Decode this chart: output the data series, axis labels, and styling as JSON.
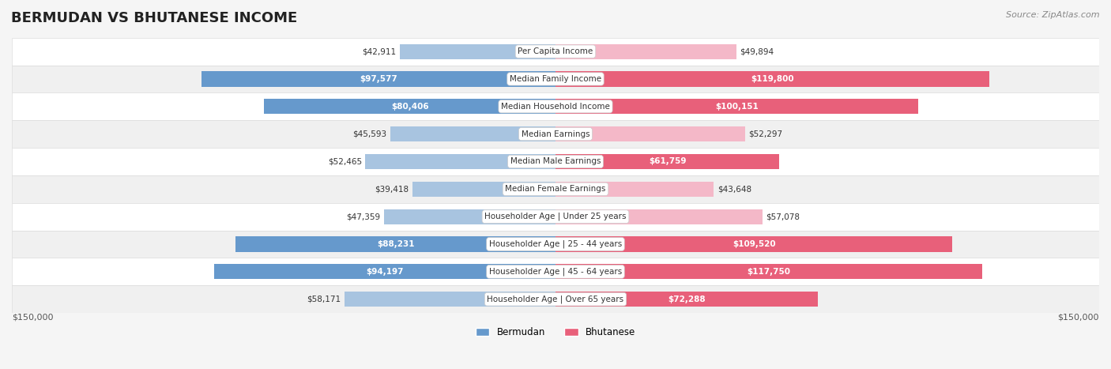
{
  "title": "BERMUDAN VS BHUTANESE INCOME",
  "source": "Source: ZipAtlas.com",
  "categories": [
    "Per Capita Income",
    "Median Family Income",
    "Median Household Income",
    "Median Earnings",
    "Median Male Earnings",
    "Median Female Earnings",
    "Householder Age | Under 25 years",
    "Householder Age | 25 - 44 years",
    "Householder Age | 45 - 64 years",
    "Householder Age | Over 65 years"
  ],
  "bermudan_values": [
    42911,
    97577,
    80406,
    45593,
    52465,
    39418,
    47359,
    88231,
    94197,
    58171
  ],
  "bhutanese_values": [
    49894,
    119800,
    100151,
    52297,
    61759,
    43648,
    57078,
    109520,
    117750,
    72288
  ],
  "bermudan_labels": [
    "$42,911",
    "$97,577",
    "$80,406",
    "$45,593",
    "$52,465",
    "$39,418",
    "$47,359",
    "$88,231",
    "$94,197",
    "$58,171"
  ],
  "bhutanese_labels": [
    "$49,894",
    "$119,800",
    "$100,151",
    "$52,297",
    "$61,759",
    "$43,648",
    "$57,078",
    "$109,520",
    "$117,750",
    "$72,288"
  ],
  "bermudan_color_light": "#a8c4e0",
  "bermudan_color_dark": "#6699cc",
  "bhutanese_color_light": "#f4b8c8",
  "bhutanese_color_dark": "#e8607a",
  "max_value": 150000,
  "bar_height": 0.55,
  "bg_color": "#f5f5f5",
  "row_bg_color": "#ffffff",
  "row_alt_bg_color": "#f0f0f0",
  "legend_bermudan": "Bermudan",
  "legend_bhutanese": "Bhutanese"
}
